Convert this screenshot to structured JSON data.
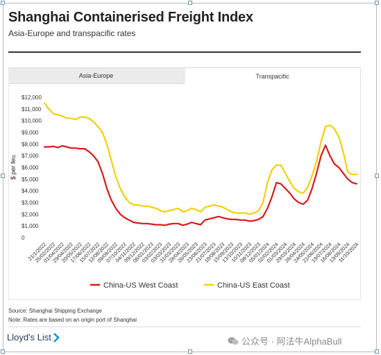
{
  "header": {
    "title": "Shanghai Containerised Freight Index",
    "subtitle": "Asia-Europe and transpacific rates"
  },
  "tabs": [
    {
      "label": "Asia-Europe",
      "active": false
    },
    {
      "label": "Transpacific",
      "active": true
    }
  ],
  "footer": {
    "source": "Source: Shanghai Shipping Exchange",
    "note": "Note: Rates are based on an origin port of Shanghai",
    "brand": "Lloyd's List",
    "watermark": "公众号 · 阿法牛AlphaBull"
  },
  "colors": {
    "west_coast": "#d7191c",
    "east_coast": "#f2d00c",
    "brand": "#2a3a5a",
    "brand_accent": "#0096d6"
  },
  "icons": [
    "chat-bubble-icon",
    "lloyds-list-logo-mark"
  ],
  "chart_data": {
    "type": "line",
    "title": "",
    "xlabel": "",
    "ylabel": "$ per feu",
    "ylim": [
      0,
      12000
    ],
    "yticks": [
      "0",
      "$1,000",
      "$2,000",
      "$3,000",
      "$4,000",
      "$5,000",
      "$6,000",
      "$7,000",
      "$8,000",
      "$9,000",
      "$10,000",
      "$11,000",
      "$12,000"
    ],
    "xticks": [
      "21/1/2022",
      "25/02/2022",
      "01/04/2022",
      "29/04/2022",
      "20/05/2022",
      "17/06/2022",
      "15/07/2022",
      "12/08/2022",
      "09/09/2022",
      "07/10/2022",
      "04/11/2022",
      "09/12/2022",
      "06/01/2023",
      "03/02/2023",
      "03/03/2023",
      "31/03/2023",
      "28/04/2023",
      "26/05/2023",
      "23/06/2023",
      "21/07/2023",
      "18/08/2023",
      "15/09/2023",
      "13/10/2023",
      "10/11/2023",
      "08/12/2023",
      "05/01/2024",
      "02/02/2024",
      "01/03/2024",
      "29/03/2024",
      "26/04/2024",
      "24/05/2024",
      "21/06/2024",
      "19/07/2024",
      "16/08/2024",
      "13/09/2024",
      "11/10/2024"
    ],
    "legend_position": "bottom",
    "series": [
      {
        "name": "China-US West Coast",
        "values": [
          7750,
          7750,
          7800,
          7700,
          7850,
          7750,
          7650,
          7650,
          7600,
          7600,
          7350,
          7000,
          6500,
          5500,
          4200,
          3200,
          2500,
          2000,
          1700,
          1500,
          1300,
          1250,
          1200,
          1200,
          1150,
          1100,
          1100,
          1050,
          1150,
          1200,
          1200,
          1050,
          1150,
          1300,
          1200,
          1100,
          1500,
          1600,
          1700,
          1800,
          1700,
          1600,
          1550,
          1550,
          1500,
          1500,
          1400,
          1450,
          1550,
          1800,
          2500,
          3500,
          4700,
          4600,
          4200,
          3800,
          3300,
          3000,
          2850,
          3200,
          4200,
          5500,
          7000,
          7900,
          7000,
          6300,
          6000,
          5500,
          5000,
          4700,
          4600
        ]
      },
      {
        "name": "China-US East Coast",
        "values": [
          11500,
          11000,
          10600,
          10500,
          10400,
          10200,
          10200,
          10100,
          10300,
          10300,
          10200,
          9900,
          9500,
          9000,
          8000,
          6600,
          5200,
          4200,
          3500,
          3000,
          2800,
          2800,
          2700,
          2700,
          2600,
          2500,
          2300,
          2200,
          2300,
          2400,
          2500,
          2200,
          2300,
          2500,
          2400,
          2200,
          2600,
          2700,
          2800,
          2700,
          2600,
          2400,
          2200,
          2100,
          2100,
          2100,
          2000,
          2100,
          2300,
          3000,
          4700,
          5800,
          6200,
          6200,
          5500,
          4800,
          4200,
          3900,
          3800,
          4300,
          5300,
          6500,
          8200,
          9500,
          9600,
          9300,
          8600,
          7300,
          5600,
          5400,
          5400
        ]
      }
    ]
  }
}
